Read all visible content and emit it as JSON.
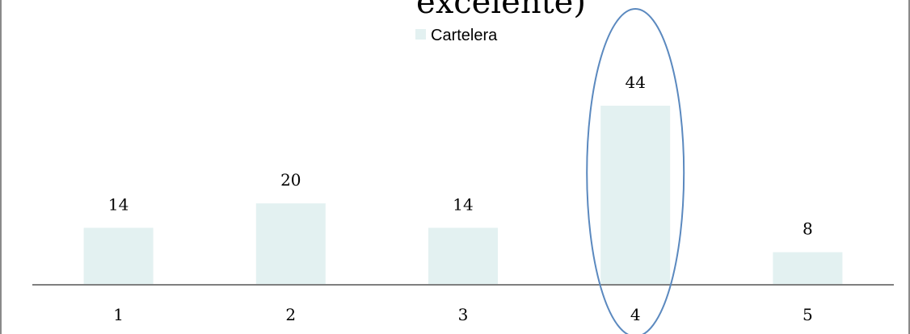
{
  "chart_data": {
    "type": "bar",
    "title": "excelente)",
    "categories": [
      "1",
      "2",
      "3",
      "4",
      "5"
    ],
    "series": [
      {
        "name": "Cartelera",
        "values": [
          14,
          20,
          14,
          44,
          8
        ],
        "color": "#e3f1f1"
      }
    ],
    "xlabel": "",
    "ylabel": "",
    "ylim": [
      0,
      44
    ],
    "grid": false,
    "legend": "top-center",
    "data_labels": true,
    "highlight": {
      "category": "4",
      "shape": "ellipse",
      "color": "#5b89bf"
    },
    "axis_color": "#7f7f7f"
  }
}
